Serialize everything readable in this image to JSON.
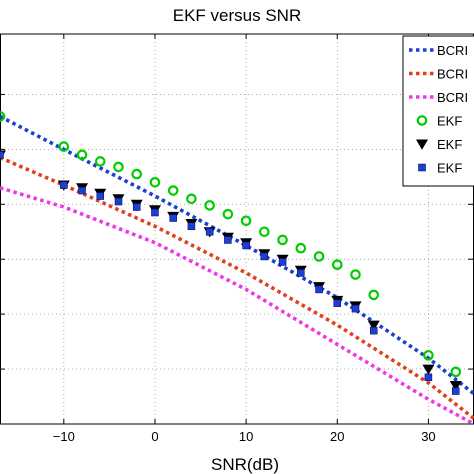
{
  "chart_data": {
    "type": "line",
    "title": "EKF versus SNR",
    "xlabel": "SNR(dB)",
    "ylabel": "",
    "xlim": [
      -17,
      35
    ],
    "ylim": [
      -2,
      5.1
    ],
    "x_ticks": [
      -10,
      0,
      10,
      20,
      30
    ],
    "x_tick_labels": [
      "−10",
      "0",
      "10",
      "20",
      "30"
    ],
    "y_gridlines": [
      -1,
      0,
      1,
      2,
      3,
      4
    ],
    "grid": true,
    "legend_position": "top-right",
    "colors": {
      "blue_line": "#1a3fd1",
      "red_line": "#e0401b",
      "magenta_line": "#f037e6",
      "green_marker": "#00cc00",
      "black_marker": "#000000",
      "blue_marker": "#1a3fd1"
    },
    "series": [
      {
        "name": "BCRI",
        "kind": "line",
        "style": "dotted",
        "color": "#1a3fd1",
        "x": [
          -17,
          -10,
          0,
          10,
          20,
          30,
          35
        ],
        "y": [
          3.6,
          3.0,
          2.15,
          1.25,
          0.3,
          -0.8,
          -1.45
        ]
      },
      {
        "name": "BCRI",
        "kind": "line",
        "style": "dotted",
        "color": "#e0401b",
        "x": [
          -17,
          -10,
          0,
          10,
          20,
          30,
          35
        ],
        "y": [
          2.85,
          2.35,
          1.6,
          0.75,
          -0.2,
          -1.25,
          -1.9
        ]
      },
      {
        "name": "BCRI",
        "kind": "line",
        "style": "dotted",
        "color": "#f037e6",
        "x": [
          -17,
          -10,
          0,
          10,
          20,
          30,
          35
        ],
        "y": [
          2.3,
          1.95,
          1.3,
          0.45,
          -0.55,
          -1.55,
          -2.0
        ]
      },
      {
        "name": "EKF",
        "kind": "marker",
        "marker": "circle",
        "color": "#00cc00",
        "x": [
          -17,
          -10,
          -8,
          -6,
          -4,
          -2,
          0,
          2,
          4,
          6,
          8,
          10,
          12,
          14,
          16,
          18,
          20,
          22,
          24,
          30,
          33
        ],
        "y": [
          3.6,
          3.05,
          2.9,
          2.78,
          2.68,
          2.55,
          2.4,
          2.25,
          2.1,
          1.98,
          1.82,
          1.7,
          1.5,
          1.35,
          1.2,
          1.05,
          0.9,
          0.72,
          0.35,
          -0.75,
          -1.05
        ]
      },
      {
        "name": "EKF",
        "kind": "marker",
        "marker": "triangle-down",
        "color": "#000000",
        "x": [
          -17,
          -10,
          -8,
          -6,
          -4,
          -2,
          0,
          2,
          4,
          6,
          8,
          10,
          12,
          14,
          16,
          18,
          20,
          22,
          24,
          30,
          33
        ],
        "y": [
          2.9,
          2.35,
          2.3,
          2.2,
          2.1,
          2.0,
          1.9,
          1.78,
          1.65,
          1.5,
          1.4,
          1.3,
          1.1,
          1.0,
          0.8,
          0.5,
          0.25,
          0.15,
          -0.2,
          -1.0,
          -1.3
        ]
      },
      {
        "name": "EKF",
        "kind": "marker",
        "marker": "square",
        "color": "#1a3fd1",
        "x": [
          -17,
          -10,
          -8,
          -6,
          -4,
          -2,
          0,
          2,
          4,
          6,
          8,
          10,
          12,
          14,
          16,
          18,
          20,
          22,
          24,
          30,
          33
        ],
        "y": [
          2.9,
          2.35,
          2.25,
          2.15,
          2.05,
          1.95,
          1.85,
          1.75,
          1.6,
          1.5,
          1.35,
          1.25,
          1.05,
          0.95,
          0.75,
          0.45,
          0.2,
          0.1,
          -0.3,
          -1.15,
          -1.4
        ]
      }
    ]
  }
}
